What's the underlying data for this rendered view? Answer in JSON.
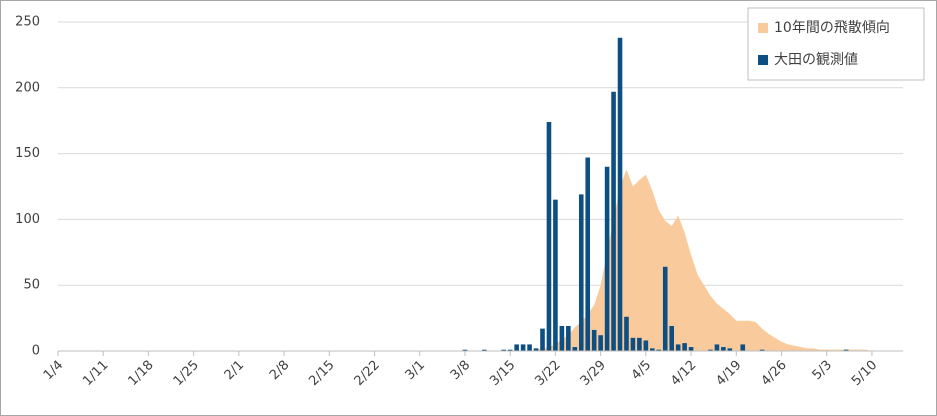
{
  "chart_data": {
    "type": "combo",
    "categories": [
      "1/4",
      null,
      null,
      null,
      null,
      null,
      null,
      "1/11",
      null,
      null,
      null,
      null,
      null,
      null,
      "1/18",
      null,
      null,
      null,
      null,
      null,
      null,
      "1/25",
      null,
      null,
      null,
      null,
      null,
      null,
      "2/1",
      null,
      null,
      null,
      null,
      null,
      null,
      "2/8",
      null,
      null,
      null,
      null,
      null,
      null,
      "2/15",
      null,
      null,
      null,
      null,
      null,
      null,
      "2/22",
      null,
      null,
      null,
      null,
      null,
      null,
      "3/1",
      null,
      null,
      null,
      null,
      null,
      null,
      "3/8",
      null,
      null,
      null,
      null,
      null,
      null,
      "3/15",
      null,
      null,
      null,
      null,
      null,
      null,
      "3/22",
      null,
      null,
      null,
      null,
      null,
      null,
      "3/29",
      null,
      null,
      null,
      null,
      null,
      null,
      "4/5",
      null,
      null,
      null,
      null,
      null,
      null,
      "4/12",
      null,
      null,
      null,
      null,
      null,
      null,
      "4/19",
      null,
      null,
      null,
      null,
      null,
      null,
      "4/26",
      null,
      null,
      null,
      null,
      null,
      null,
      "5/3",
      null,
      null,
      null,
      null,
      null,
      null,
      "5/10",
      null,
      null,
      null,
      null
    ],
    "series": [
      {
        "name": "10年間の飛散傾向",
        "type": "area",
        "color": "#f9cb9c",
        "values": [
          0,
          0,
          0,
          0,
          0,
          0,
          0,
          0,
          0,
          0,
          0,
          0,
          0,
          0,
          0,
          0,
          0,
          0,
          0,
          0,
          0,
          0,
          0,
          0,
          0,
          0,
          0,
          0,
          0,
          0,
          0,
          0,
          0,
          0,
          0,
          0,
          0,
          0,
          0,
          0,
          0,
          0,
          0,
          0,
          0,
          0,
          0,
          0,
          0,
          0,
          0,
          0,
          0,
          0,
          0,
          0,
          0,
          0,
          0,
          0,
          0,
          0,
          0,
          0,
          0,
          0,
          0,
          0,
          0,
          0,
          0,
          0,
          0,
          0,
          1,
          2,
          3,
          5,
          9,
          12,
          18,
          22,
          28,
          35,
          50,
          75,
          100,
          125,
          138,
          125,
          130,
          134,
          122,
          107,
          99,
          95,
          103,
          90,
          73,
          58,
          50,
          42,
          36,
          32,
          28,
          23,
          23,
          23,
          22,
          17,
          13,
          10,
          7,
          5,
          4,
          3,
          2,
          2,
          1,
          1,
          1,
          1,
          1,
          1,
          1,
          1,
          0,
          0,
          0,
          0,
          0
        ]
      },
      {
        "name": "大田の観測値",
        "type": "bar",
        "color": "#0d4f82",
        "values": [
          0,
          0,
          0,
          0,
          0,
          0,
          0,
          0,
          0,
          0,
          0,
          0,
          0,
          0,
          0,
          0,
          0,
          0,
          0,
          0,
          0,
          0,
          0,
          0,
          0,
          0,
          0,
          0,
          0,
          0,
          0,
          0,
          0,
          0,
          0,
          0,
          0,
          0,
          0,
          0,
          0,
          0,
          0,
          0,
          0,
          0,
          0,
          0,
          0,
          0,
          0,
          0,
          0,
          0,
          0,
          0,
          0,
          0,
          0,
          0,
          0,
          0,
          0,
          1,
          0,
          0,
          1,
          0,
          0,
          1,
          1,
          5,
          5,
          5,
          2,
          17,
          174,
          115,
          19,
          19,
          3,
          119,
          147,
          16,
          12,
          140,
          197,
          238,
          26,
          10,
          10,
          8,
          2,
          1,
          64,
          19,
          5,
          6,
          3,
          0,
          0,
          1,
          5,
          3,
          2,
          0,
          5,
          0,
          0,
          1,
          0,
          0,
          0,
          0,
          0,
          0,
          0,
          0,
          0,
          0,
          0,
          0,
          1,
          0,
          0,
          0,
          0,
          0,
          0,
          0,
          0
        ]
      }
    ],
    "ylim": [
      0,
      250
    ],
    "yticks": [
      0,
      50,
      100,
      150,
      200,
      250
    ],
    "grid": true,
    "legend": "upper right"
  }
}
